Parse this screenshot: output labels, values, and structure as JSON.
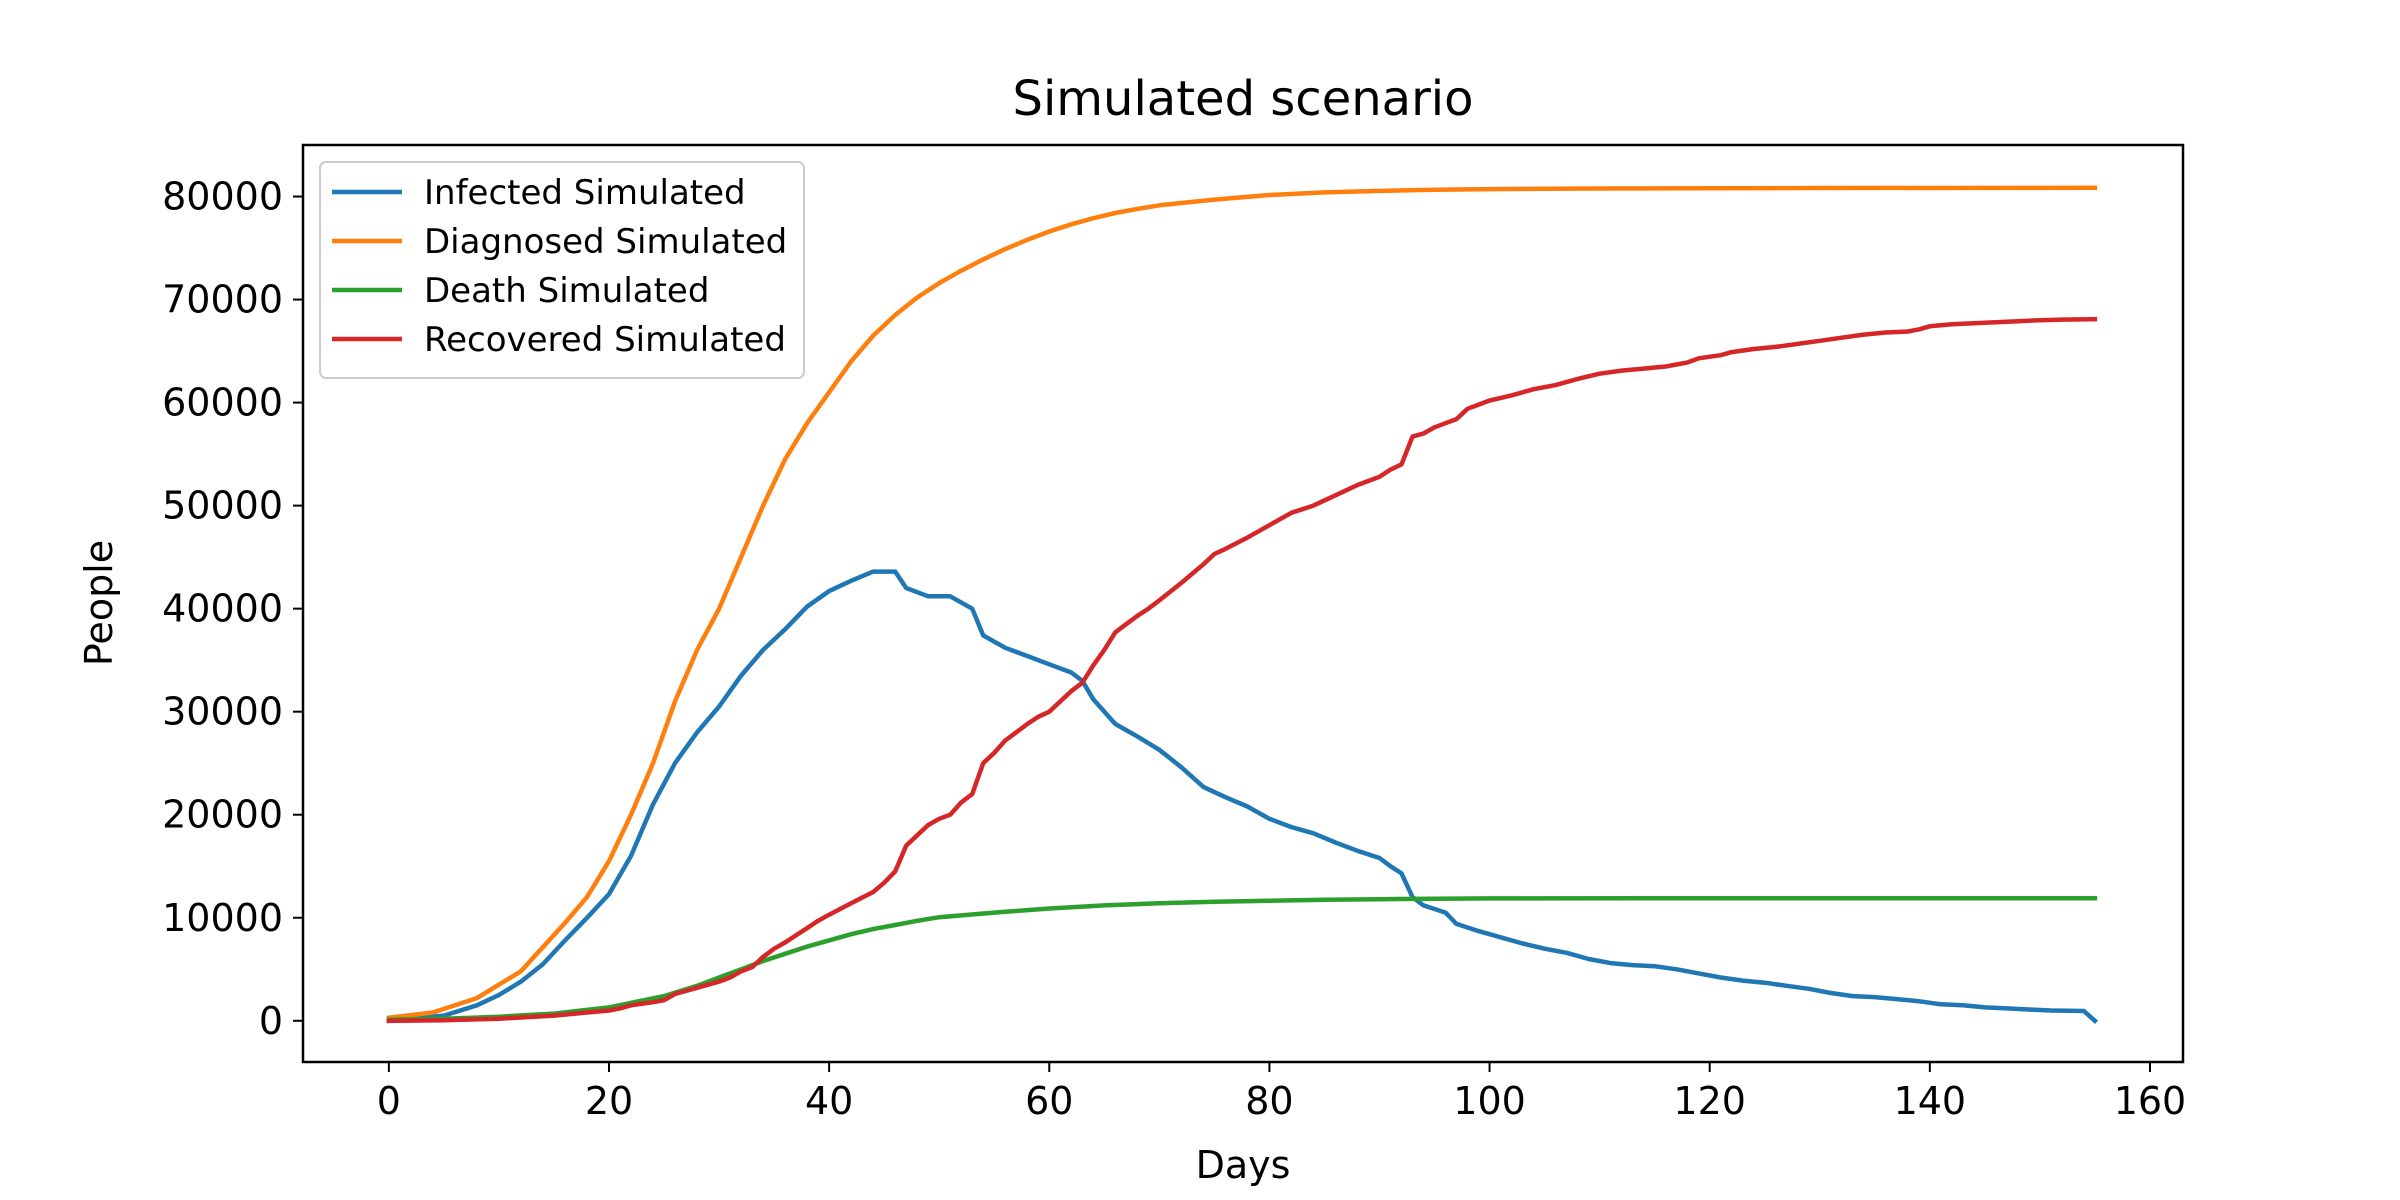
{
  "chart_data": {
    "type": "line",
    "title": "Simulated scenario",
    "xlabel": "Days",
    "ylabel": "People",
    "xlim": [
      -7.8,
      163
    ],
    "ylim": [
      -4000,
      85000
    ],
    "xticks": [
      0,
      20,
      40,
      60,
      80,
      100,
      120,
      140,
      160
    ],
    "yticks": [
      0,
      10000,
      20000,
      30000,
      40000,
      50000,
      60000,
      70000,
      80000
    ],
    "grid": false,
    "legend_position": "top-left",
    "series": [
      {
        "name": "Infected Simulated",
        "color": "#1f77b4",
        "points": [
          [
            0,
            0
          ],
          [
            5,
            500
          ],
          [
            8,
            1500
          ],
          [
            10,
            2500
          ],
          [
            12,
            3800
          ],
          [
            14,
            5500
          ],
          [
            16,
            7800
          ],
          [
            18,
            10000
          ],
          [
            20,
            12300
          ],
          [
            22,
            16000
          ],
          [
            24,
            21000
          ],
          [
            26,
            25000
          ],
          [
            28,
            28000
          ],
          [
            30,
            30500
          ],
          [
            32,
            33500
          ],
          [
            34,
            36000
          ],
          [
            36,
            38000
          ],
          [
            38,
            40200
          ],
          [
            40,
            41700
          ],
          [
            42,
            42700
          ],
          [
            44,
            43600
          ],
          [
            46,
            43600
          ],
          [
            47,
            42000
          ],
          [
            49,
            41200
          ],
          [
            51,
            41200
          ],
          [
            53,
            40000
          ],
          [
            54,
            37400
          ],
          [
            56,
            36200
          ],
          [
            58,
            35400
          ],
          [
            60,
            34600
          ],
          [
            62,
            33800
          ],
          [
            63,
            33000
          ],
          [
            64,
            31200
          ],
          [
            66,
            28800
          ],
          [
            68,
            27600
          ],
          [
            70,
            26300
          ],
          [
            72,
            24600
          ],
          [
            74,
            22700
          ],
          [
            76,
            21700
          ],
          [
            78,
            20800
          ],
          [
            80,
            19600
          ],
          [
            82,
            18800
          ],
          [
            84,
            18200
          ],
          [
            86,
            17300
          ],
          [
            88,
            16500
          ],
          [
            90,
            15800
          ],
          [
            91,
            15000
          ],
          [
            92,
            14300
          ],
          [
            93,
            12000
          ],
          [
            94,
            11200
          ],
          [
            96,
            10500
          ],
          [
            97,
            9400
          ],
          [
            99,
            8700
          ],
          [
            101,
            8100
          ],
          [
            103,
            7500
          ],
          [
            105,
            7000
          ],
          [
            107,
            6600
          ],
          [
            109,
            6000
          ],
          [
            111,
            5600
          ],
          [
            113,
            5400
          ],
          [
            115,
            5300
          ],
          [
            117,
            5000
          ],
          [
            119,
            4600
          ],
          [
            121,
            4200
          ],
          [
            123,
            3900
          ],
          [
            125,
            3700
          ],
          [
            127,
            3400
          ],
          [
            129,
            3100
          ],
          [
            131,
            2700
          ],
          [
            133,
            2400
          ],
          [
            135,
            2300
          ],
          [
            137,
            2100
          ],
          [
            139,
            1900
          ],
          [
            141,
            1600
          ],
          [
            143,
            1500
          ],
          [
            145,
            1300
          ],
          [
            147,
            1200
          ],
          [
            149,
            1100
          ],
          [
            151,
            1000
          ],
          [
            154,
            950
          ],
          [
            155,
            0
          ]
        ]
      },
      {
        "name": "Diagnosed Simulated",
        "color": "#ff7f0e",
        "points": [
          [
            0,
            300
          ],
          [
            4,
            800
          ],
          [
            8,
            2200
          ],
          [
            12,
            4800
          ],
          [
            16,
            9500
          ],
          [
            18,
            12000
          ],
          [
            20,
            15500
          ],
          [
            22,
            20000
          ],
          [
            24,
            25000
          ],
          [
            26,
            31000
          ],
          [
            28,
            36000
          ],
          [
            30,
            40000
          ],
          [
            32,
            45000
          ],
          [
            34,
            50000
          ],
          [
            36,
            54500
          ],
          [
            38,
            58000
          ],
          [
            40,
            61000
          ],
          [
            42,
            64000
          ],
          [
            44,
            66500
          ],
          [
            46,
            68500
          ],
          [
            48,
            70200
          ],
          [
            50,
            71600
          ],
          [
            52,
            72800
          ],
          [
            54,
            73900
          ],
          [
            56,
            74900
          ],
          [
            58,
            75800
          ],
          [
            60,
            76600
          ],
          [
            62,
            77300
          ],
          [
            64,
            77900
          ],
          [
            66,
            78400
          ],
          [
            68,
            78800
          ],
          [
            70,
            79150
          ],
          [
            75,
            79700
          ],
          [
            80,
            80150
          ],
          [
            85,
            80400
          ],
          [
            90,
            80550
          ],
          [
            95,
            80650
          ],
          [
            100,
            80720
          ],
          [
            110,
            80780
          ],
          [
            120,
            80810
          ],
          [
            130,
            80830
          ],
          [
            155,
            80850
          ]
        ]
      },
      {
        "name": "Death Simulated",
        "color": "#2ca02c",
        "points": [
          [
            0,
            100
          ],
          [
            5,
            200
          ],
          [
            10,
            400
          ],
          [
            15,
            700
          ],
          [
            20,
            1300
          ],
          [
            25,
            2400
          ],
          [
            28,
            3400
          ],
          [
            30,
            4200
          ],
          [
            32,
            5000
          ],
          [
            34,
            5800
          ],
          [
            36,
            6500
          ],
          [
            38,
            7200
          ],
          [
            40,
            7800
          ],
          [
            42,
            8400
          ],
          [
            44,
            8900
          ],
          [
            46,
            9300
          ],
          [
            48,
            9700
          ],
          [
            50,
            10050
          ],
          [
            55,
            10500
          ],
          [
            60,
            10900
          ],
          [
            65,
            11200
          ],
          [
            70,
            11400
          ],
          [
            75,
            11550
          ],
          [
            80,
            11650
          ],
          [
            85,
            11750
          ],
          [
            90,
            11800
          ],
          [
            95,
            11850
          ],
          [
            100,
            11880
          ],
          [
            120,
            11900
          ],
          [
            155,
            11900
          ]
        ]
      },
      {
        "name": "Recovered Simulated",
        "color": "#d62728",
        "points": [
          [
            0,
            0
          ],
          [
            5,
            50
          ],
          [
            10,
            200
          ],
          [
            15,
            500
          ],
          [
            18,
            800
          ],
          [
            20,
            1000
          ],
          [
            21,
            1200
          ],
          [
            22,
            1500
          ],
          [
            24,
            1800
          ],
          [
            25,
            2000
          ],
          [
            26,
            2600
          ],
          [
            28,
            3200
          ],
          [
            30,
            3800
          ],
          [
            31,
            4200
          ],
          [
            32,
            4800
          ],
          [
            33,
            5200
          ],
          [
            34,
            6200
          ],
          [
            35,
            7000
          ],
          [
            36,
            7600
          ],
          [
            37,
            8300
          ],
          [
            38,
            9000
          ],
          [
            39,
            9700
          ],
          [
            40,
            10300
          ],
          [
            42,
            11400
          ],
          [
            44,
            12500
          ],
          [
            45,
            13400
          ],
          [
            46,
            14500
          ],
          [
            47,
            17000
          ],
          [
            48,
            18000
          ],
          [
            49,
            19000
          ],
          [
            50,
            19600
          ],
          [
            51,
            20000
          ],
          [
            52,
            21200
          ],
          [
            53,
            22000
          ],
          [
            54,
            25000
          ],
          [
            55,
            26000
          ],
          [
            56,
            27200
          ],
          [
            57,
            28000
          ],
          [
            58,
            28800
          ],
          [
            59,
            29500
          ],
          [
            60,
            30000
          ],
          [
            61,
            31000
          ],
          [
            62,
            32000
          ],
          [
            63,
            32800
          ],
          [
            64,
            34500
          ],
          [
            65,
            36000
          ],
          [
            66,
            37700
          ],
          [
            67,
            38500
          ],
          [
            68,
            39300
          ],
          [
            69,
            40000
          ],
          [
            70,
            40800
          ],
          [
            72,
            42500
          ],
          [
            74,
            44300
          ],
          [
            75,
            45300
          ],
          [
            76,
            45800
          ],
          [
            78,
            46900
          ],
          [
            80,
            48100
          ],
          [
            82,
            49300
          ],
          [
            84,
            50000
          ],
          [
            86,
            51000
          ],
          [
            88,
            52000
          ],
          [
            90,
            52800
          ],
          [
            91,
            53500
          ],
          [
            92,
            54000
          ],
          [
            93,
            56700
          ],
          [
            94,
            57000
          ],
          [
            95,
            57600
          ],
          [
            96,
            58000
          ],
          [
            97,
            58400
          ],
          [
            98,
            59400
          ],
          [
            99,
            59800
          ],
          [
            100,
            60200
          ],
          [
            102,
            60700
          ],
          [
            104,
            61300
          ],
          [
            106,
            61700
          ],
          [
            108,
            62300
          ],
          [
            110,
            62800
          ],
          [
            112,
            63100
          ],
          [
            114,
            63300
          ],
          [
            116,
            63500
          ],
          [
            118,
            63900
          ],
          [
            119,
            64300
          ],
          [
            121,
            64600
          ],
          [
            122,
            64900
          ],
          [
            124,
            65200
          ],
          [
            126,
            65400
          ],
          [
            128,
            65700
          ],
          [
            130,
            66000
          ],
          [
            132,
            66300
          ],
          [
            134,
            66600
          ],
          [
            136,
            66800
          ],
          [
            138,
            66900
          ],
          [
            139,
            67100
          ],
          [
            140,
            67400
          ],
          [
            142,
            67600
          ],
          [
            144,
            67700
          ],
          [
            146,
            67800
          ],
          [
            148,
            67900
          ],
          [
            150,
            68000
          ],
          [
            152,
            68050
          ],
          [
            155,
            68100
          ]
        ]
      }
    ]
  }
}
